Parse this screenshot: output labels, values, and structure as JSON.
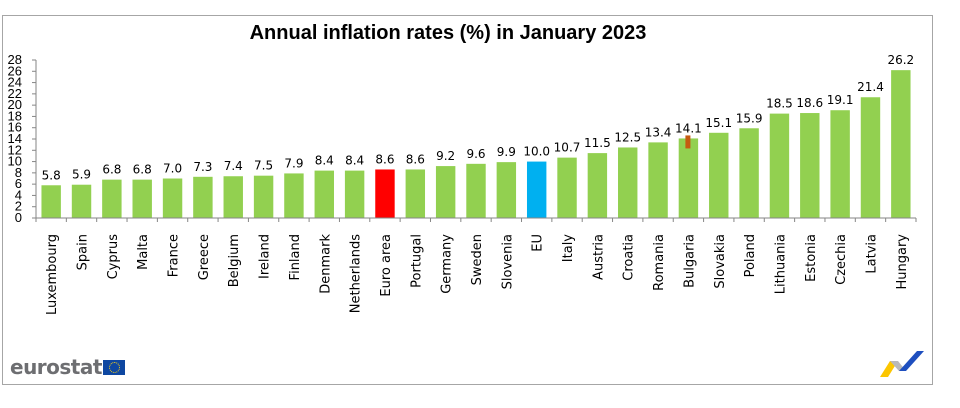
{
  "chart_data": {
    "type": "bar",
    "title": "Annual inflation rates (%) in January 2023",
    "xlabel": "",
    "ylabel": "",
    "ylim": [
      0,
      28
    ],
    "yticks": [
      0,
      2,
      4,
      6,
      8,
      10,
      12,
      14,
      16,
      18,
      20,
      22,
      24,
      26,
      28
    ],
    "grid": false,
    "legend": "none",
    "categories": [
      "Luxembourg",
      "Spain",
      "Cyprus",
      "Malta",
      "France",
      "Greece",
      "Belgium",
      "Ireland",
      "Finland",
      "Denmark",
      "Netherlands",
      "Euro area",
      "Portugal",
      "Germany",
      "Sweden",
      "Slovenia",
      "EU",
      "Italy",
      "Austria",
      "Croatia",
      "Romania",
      "Bulgaria",
      "Slovakia",
      "Poland",
      "Lithuania",
      "Estonia",
      "Czechia",
      "Latvia",
      "Hungary"
    ],
    "values": [
      5.8,
      5.9,
      6.8,
      6.8,
      7.0,
      7.3,
      7.4,
      7.5,
      7.9,
      8.4,
      8.4,
      8.6,
      8.6,
      9.2,
      9.6,
      9.9,
      10.0,
      10.7,
      11.5,
      12.5,
      13.4,
      14.1,
      15.1,
      15.9,
      18.5,
      18.6,
      19.1,
      21.4,
      26.2
    ],
    "data_labels": [
      "5.8",
      "5.9",
      "6.8",
      "6.8",
      "7.0",
      "7.3",
      "7.4",
      "7.5",
      "7.9",
      "8.4",
      "8.4",
      "8.6",
      "8.6",
      "9.2",
      "9.6",
      "9.9",
      "10.0",
      "10.7",
      "11.5",
      "12.5",
      "13.4",
      "14.1",
      "15.1",
      "15.9",
      "18.5",
      "18.6",
      "19.1",
      "21.4",
      "26.2"
    ],
    "colors": {
      "default": "#92d050",
      "highlight": {
        "Euro area": "#ff0000",
        "EU": "#00b0f0"
      },
      "marker": "#c55a11"
    },
    "annotations": [
      {
        "category": "Bulgaria",
        "type": "marker"
      }
    ]
  },
  "branding": {
    "logo_text": "eurostat"
  }
}
